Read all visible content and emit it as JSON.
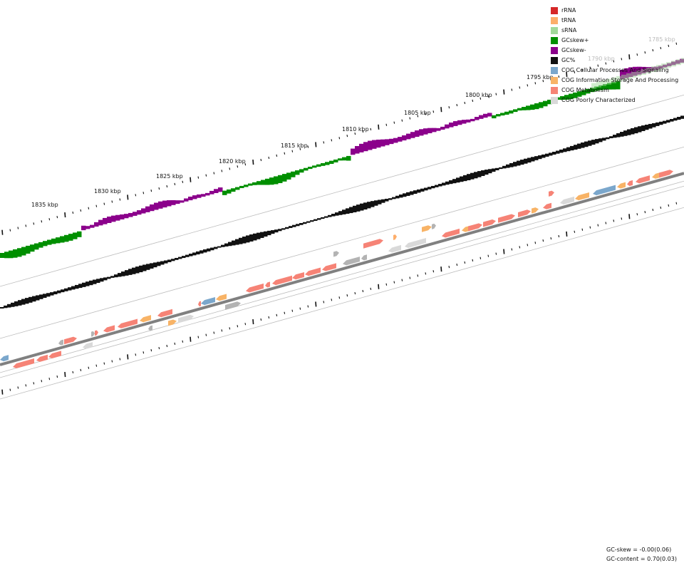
{
  "legend": [
    {
      "label": "rRNA",
      "color": "#d62728"
    },
    {
      "label": "tRNA",
      "color": "#fdae6b"
    },
    {
      "label": "sRNA",
      "color": "#a1d99b"
    },
    {
      "label": "GCskew+",
      "color": "#008f00"
    },
    {
      "label": "GCskew-",
      "color": "#8b008b"
    },
    {
      "label": "GC%",
      "color": "#111111"
    },
    {
      "label": "COG Cellular Processes And Signaling",
      "color": "#7ba7cc"
    },
    {
      "label": "COG Information Storage And Processing",
      "color": "#f8b366"
    },
    {
      "label": "COG Metabolism",
      "color": "#f68376"
    },
    {
      "label": "COG Poorly Characterized",
      "color": "#d9d9d9"
    }
  ],
  "position_labels": [
    "1785 kbp",
    "1790 kbp",
    "1795 kbp",
    "1800 kbp",
    "1805 kbp",
    "1810 kbp",
    "1815 kbp",
    "1820 kbp",
    "1825 kbp",
    "1830 kbp",
    "1835 kbp"
  ],
  "stats": {
    "gc_skew": "GC-skew = -0.00(0.06)",
    "gc_content": "GC-content = 0.70(0.03)"
  },
  "colors": {
    "backbone": "#808080",
    "guide": "#bdbdbd",
    "ticks": "#111111",
    "faded_label": "#bbbbbb",
    "gray_feature": "#b3b3b3"
  }
}
